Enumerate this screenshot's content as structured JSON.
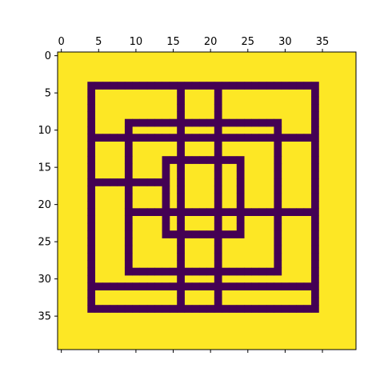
{
  "colors": {
    "background": "#fde725",
    "foreground": "#440154",
    "axis": "#000000"
  },
  "chart_data": {
    "type": "heatmap",
    "title": "",
    "xlabel": "",
    "ylabel": "",
    "grid": false,
    "x_axis_position": "top",
    "xlim": [
      -0.5,
      39.5
    ],
    "ylim": [
      39.5,
      -0.5
    ],
    "x_ticks": [
      0,
      5,
      10,
      15,
      20,
      25,
      30,
      35
    ],
    "x_tick_labels": [
      "0",
      "5",
      "10",
      "15",
      "20",
      "25",
      "30",
      "35"
    ],
    "y_ticks": [
      0,
      5,
      10,
      15,
      20,
      25,
      30,
      35
    ],
    "y_tick_labels": [
      "0",
      "5",
      "10",
      "15",
      "20",
      "25",
      "30",
      "35"
    ],
    "value_range": [
      0,
      1
    ],
    "background_value": 1,
    "line_value": 0,
    "rows": 40,
    "cols": 40,
    "rectangles": [
      {
        "row0": 4,
        "row1": 34,
        "col0": 4,
        "col1": 34
      },
      {
        "row0": 9,
        "row1": 29,
        "col0": 9,
        "col1": 29
      },
      {
        "row0": 14,
        "row1": 24,
        "col0": 14,
        "col1": 24
      }
    ],
    "horizontal_lines": [
      {
        "row": 11,
        "col0": 4,
        "col1": 34
      },
      {
        "row": 17,
        "col0": 4,
        "col1": 14
      },
      {
        "row": 21,
        "col0": 9,
        "col1": 34
      },
      {
        "row": 31,
        "col0": 4,
        "col1": 34
      }
    ],
    "vertical_lines": [
      {
        "col": 16,
        "row0": 4,
        "row1": 34
      },
      {
        "col": 21,
        "row0": 4,
        "row1": 34
      }
    ]
  }
}
